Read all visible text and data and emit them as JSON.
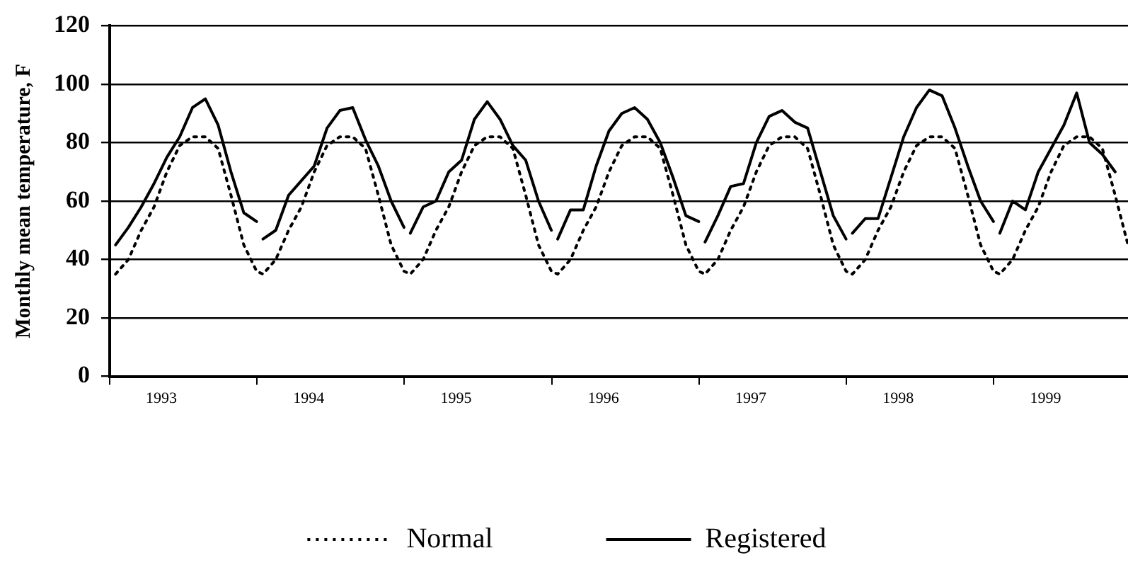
{
  "chart_data": {
    "type": "line",
    "ylabel": "Monthly mean temperature, F",
    "x": [
      1993.04,
      1993.127,
      1993.214,
      1993.301,
      1993.388,
      1993.475,
      1993.562,
      1993.649,
      1993.736,
      1993.823,
      1993.91,
      1993.997,
      1994.04,
      1994.127,
      1994.214,
      1994.301,
      1994.388,
      1994.475,
      1994.562,
      1994.649,
      1994.736,
      1994.823,
      1994.91,
      1994.997,
      1995.04,
      1995.127,
      1995.214,
      1995.301,
      1995.388,
      1995.475,
      1995.562,
      1995.649,
      1995.736,
      1995.823,
      1995.91,
      1995.997,
      1996.04,
      1996.127,
      1996.214,
      1996.301,
      1996.388,
      1996.475,
      1996.562,
      1996.649,
      1996.736,
      1996.823,
      1996.91,
      1996.997,
      1997.04,
      1997.127,
      1997.214,
      1997.301,
      1997.388,
      1997.475,
      1997.562,
      1997.649,
      1997.736,
      1997.823,
      1997.91,
      1997.997,
      1998.04,
      1998.127,
      1998.214,
      1998.301,
      1998.388,
      1998.475,
      1998.562,
      1998.649,
      1998.736,
      1998.823,
      1998.91,
      1998.997,
      1999.04,
      1999.127,
      1999.214,
      1999.301,
      1999.388,
      1999.475,
      1999.562,
      1999.649,
      1999.736,
      1999.823,
      1999.91
    ],
    "series": [
      {
        "name": "Normal",
        "color": "#000000",
        "line_style": "dotted",
        "values": [
          35,
          40,
          50,
          58,
          70,
          79,
          82,
          82,
          78,
          62,
          45,
          36,
          35,
          40,
          50,
          58,
          70,
          79,
          82,
          82,
          78,
          62,
          45,
          36,
          35,
          40,
          50,
          58,
          70,
          79,
          82,
          82,
          78,
          62,
          45,
          36,
          35,
          40,
          50,
          58,
          70,
          79,
          82,
          82,
          78,
          62,
          45,
          36,
          35,
          40,
          50,
          58,
          70,
          79,
          82,
          82,
          78,
          62,
          45,
          36,
          35,
          40,
          50,
          58,
          70,
          79,
          82,
          82,
          78,
          62,
          45,
          36,
          35,
          40,
          50,
          58,
          70,
          79,
          82,
          82,
          78,
          62,
          45
        ]
      },
      {
        "name": "Registered",
        "color": "#000000",
        "line_style": "solid",
        "values": [
          45,
          51,
          58,
          66,
          75,
          82,
          92,
          95,
          86,
          70,
          56,
          53,
          null,
          47,
          50,
          62,
          67,
          72,
          85,
          91,
          92,
          81,
          72,
          60,
          51,
          null,
          49,
          58,
          60,
          70,
          74,
          88,
          94,
          88,
          79,
          74,
          60,
          50,
          null,
          47,
          57,
          57,
          72,
          84,
          90,
          92,
          88,
          80,
          68,
          55,
          53,
          null,
          46,
          55,
          65,
          66,
          80,
          89,
          91,
          87,
          85,
          70,
          55,
          47,
          null,
          49,
          54,
          54,
          68,
          82,
          92,
          98,
          96,
          85,
          72,
          60,
          53,
          null,
          49,
          60,
          57,
          70,
          78,
          86,
          97,
          80,
          76,
          70
        ],
        "x": [
          1993.04,
          1993.127,
          1993.214,
          1993.301,
          1993.388,
          1993.475,
          1993.562,
          1993.649,
          1993.736,
          1993.823,
          1993.91,
          1993.997,
          1994.02,
          1994.04,
          1994.127,
          1994.214,
          1994.301,
          1994.388,
          1994.475,
          1994.562,
          1994.649,
          1994.736,
          1994.823,
          1994.91,
          1994.997,
          1995.02,
          1995.04,
          1995.127,
          1995.214,
          1995.301,
          1995.388,
          1995.475,
          1995.562,
          1995.649,
          1995.736,
          1995.823,
          1995.91,
          1995.997,
          1996.02,
          1996.04,
          1996.127,
          1996.214,
          1996.301,
          1996.388,
          1996.475,
          1996.562,
          1996.649,
          1996.736,
          1996.823,
          1996.91,
          1996.997,
          1997.02,
          1997.04,
          1997.127,
          1997.214,
          1997.301,
          1997.388,
          1997.475,
          1997.562,
          1997.649,
          1997.736,
          1997.823,
          1997.91,
          1997.997,
          1998.02,
          1998.04,
          1998.127,
          1998.214,
          1998.301,
          1998.388,
          1998.475,
          1998.562,
          1998.649,
          1998.736,
          1998.823,
          1998.91,
          1998.997,
          1999.02,
          1999.04,
          1999.127,
          1999.214,
          1999.301,
          1999.388,
          1999.475,
          1999.562,
          1999.649,
          1999.736,
          1999.823
        ]
      }
    ],
    "xlim": [
      1993,
      1999.91
    ],
    "xticks": [
      {
        "value": 1993,
        "label": null
      },
      {
        "value": 1993.35,
        "label": "1993"
      },
      {
        "value": 1994,
        "label": null
      },
      {
        "value": 1994.35,
        "label": "1994"
      },
      {
        "value": 1995,
        "label": null
      },
      {
        "value": 1995.35,
        "label": "1995"
      },
      {
        "value": 1996,
        "label": null
      },
      {
        "value": 1996.35,
        "label": "1996"
      },
      {
        "value": 1997,
        "label": null
      },
      {
        "value": 1997.35,
        "label": "1997"
      },
      {
        "value": 1998,
        "label": null
      },
      {
        "value": 1998.35,
        "label": "1998"
      },
      {
        "value": 1999,
        "label": null
      },
      {
        "value": 1999.35,
        "label": "1999"
      }
    ],
    "ylim": [
      0,
      120
    ],
    "yticks": [
      0,
      20,
      40,
      60,
      80,
      100,
      120
    ],
    "grid": "y",
    "legend": "bottom",
    "marker": "none"
  }
}
